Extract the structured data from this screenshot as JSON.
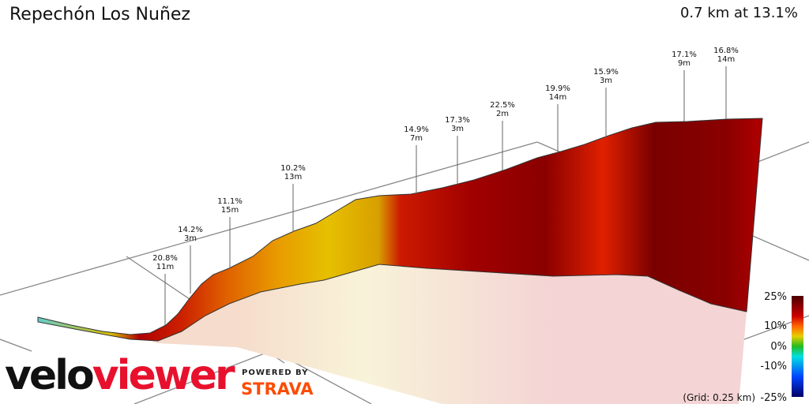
{
  "header": {
    "title": "Repechón Los Nuñez",
    "summary": "0.7 km at 13.1%"
  },
  "chart_data": {
    "type": "area",
    "title": "Repechón Los Nuñez",
    "subtitle": "0.7 km at 13.1%",
    "annotations": [
      {
        "gradient": "20.8%",
        "length": "11m"
      },
      {
        "gradient": "14.2%",
        "length": "3m"
      },
      {
        "gradient": "11.1%",
        "length": "15m"
      },
      {
        "gradient": "10.2%",
        "length": "13m"
      },
      {
        "gradient": "14.9%",
        "length": "7m"
      },
      {
        "gradient": "17.3%",
        "length": "3m"
      },
      {
        "gradient": "22.5%",
        "length": "2m"
      },
      {
        "gradient": "19.9%",
        "length": "14m"
      },
      {
        "gradient": "15.9%",
        "length": "3m"
      },
      {
        "gradient": "17.1%",
        "length": "9m"
      },
      {
        "gradient": "16.8%",
        "length": "14m"
      }
    ],
    "legend": {
      "ticks": [
        "25%",
        "10%",
        "0%",
        "-10%",
        "-25%"
      ],
      "grid_note": "(Grid: 0.25 km)",
      "colors": [
        "#4a0000",
        "#cc0000",
        "#ff6600",
        "#e6d000",
        "#22bb22",
        "#00e0e0",
        "#0044ff",
        "#000066"
      ],
      "placement": "bottom-right"
    },
    "grid": true
  },
  "branding": {
    "logo": "veloviewer",
    "powered": "POWERED BY",
    "strava": "STRAVA"
  }
}
